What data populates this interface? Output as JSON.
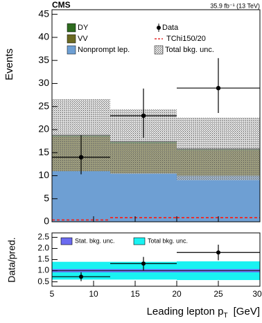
{
  "chart_data": [
    {
      "type": "stacked_histogram",
      "title": "CMS",
      "subtitle": "35.9 fb⁻¹ (13 TeV)",
      "ylabel": "Events",
      "bins": [
        5,
        12,
        20,
        30
      ],
      "xlim": [
        5,
        30
      ],
      "xticks": [
        5,
        10,
        15,
        20,
        25,
        30
      ],
      "ylim": [
        0,
        46
      ],
      "yticks": [
        0,
        5,
        10,
        15,
        20,
        25,
        30,
        35,
        40,
        45
      ],
      "series": [
        {
          "name": "DY",
          "color": "#2e6b1f",
          "values": [
            0.3,
            0.4,
            0.3
          ]
        },
        {
          "name": "VV",
          "color": "#6b6a22",
          "values": [
            7.5,
            6.5,
            5.5
          ]
        },
        {
          "name": "Nonprompt lep.",
          "color": "#6e9fd3",
          "values": [
            11,
            10.5,
            10
          ]
        }
      ],
      "uncertainty": {
        "name": "Total bkg. unc.",
        "values": [
          7.8,
          7,
          6.8
        ]
      },
      "data": {
        "name": "Data",
        "x": [
          8.5,
          16,
          25
        ],
        "values": [
          14,
          23,
          29
        ],
        "err_up": [
          4.8,
          5.9,
          6.5
        ],
        "err_down": [
          3.7,
          4.8,
          5.4
        ]
      },
      "signal": {
        "name": "TChi150/20",
        "color": "#e53030",
        "values": [
          0.4,
          0.9,
          0.9
        ]
      }
    },
    {
      "type": "ratio",
      "ylabel": "Data/pred.",
      "xlabel": [
        "Leading lepton p",
        "T",
        "[GeV]"
      ],
      "bins": [
        5,
        12,
        20,
        30
      ],
      "xlim": [
        5,
        30
      ],
      "xticks": [
        5,
        10,
        15,
        20,
        25,
        30
      ],
      "ylim": [
        0.3,
        2.7
      ],
      "yticks": [
        0.5,
        {
          "value": 1,
          "label": "1.0"
        },
        1.5,
        {
          "value": 2,
          "label": "2.0"
        },
        2.5
      ],
      "bands": [
        {
          "name": "Stat. bkg. unc.",
          "color": "#6b6bf0",
          "values": [
            0.07,
            0.07,
            0.07
          ]
        },
        {
          "name": "Total bkg. unc.",
          "color": "#19f2f2",
          "values": [
            0.4,
            0.4,
            0.42
          ]
        }
      ],
      "x": [
        8.5,
        16,
        25
      ],
      "values": [
        0.73,
        1.32,
        1.82
      ],
      "err": [
        0.2,
        0.3,
        0.35
      ]
    }
  ]
}
